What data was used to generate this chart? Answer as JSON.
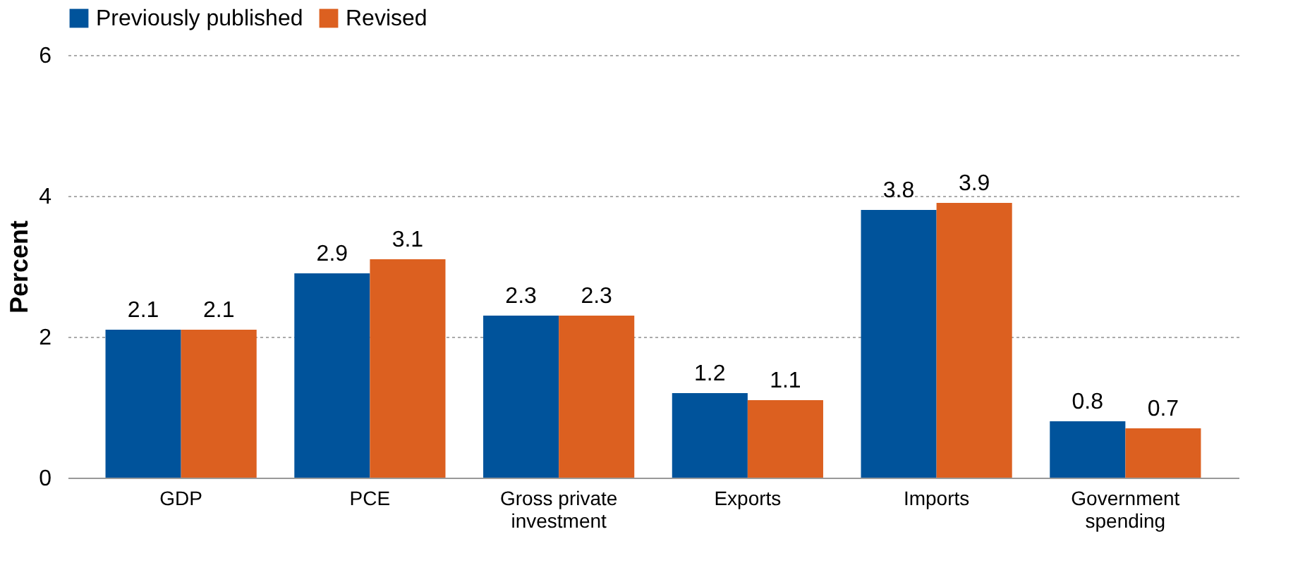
{
  "chart_data": {
    "type": "bar",
    "ylabel": "Percent",
    "categories": [
      "GDP",
      "PCE",
      "Gross private investment",
      "Exports",
      "Imports",
      "Government spending"
    ],
    "series": [
      {
        "name": "Previously published",
        "color": "#00539b",
        "values": [
          2.1,
          2.9,
          2.3,
          1.2,
          3.8,
          0.8
        ]
      },
      {
        "name": "Revised",
        "color": "#dc6020",
        "values": [
          2.1,
          3.1,
          2.3,
          1.1,
          3.9,
          0.7
        ]
      }
    ],
    "ylim": [
      0,
      6
    ],
    "yticks": [
      0,
      2,
      4,
      6
    ],
    "grid": "y",
    "legend": "top",
    "data_labels": true
  }
}
